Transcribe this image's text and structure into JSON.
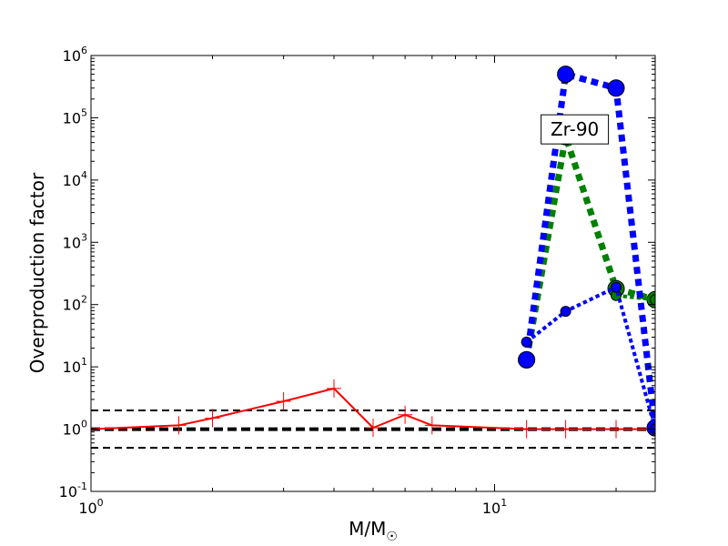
{
  "chart_data": {
    "type": "line",
    "title": "",
    "xlabel": "M/M",
    "xlabel_symbol": "☉",
    "ylabel": "Overproduction factor",
    "xscale": "log",
    "yscale": "log",
    "xlim": [
      1,
      25
    ],
    "ylim": [
      0.1,
      1000000
    ],
    "x_ticks": [
      {
        "value": 1,
        "base": "10",
        "exp": "0"
      },
      {
        "value": 10,
        "base": "10",
        "exp": "1"
      }
    ],
    "y_ticks": [
      {
        "value": 0.1,
        "base": "10",
        "exp": "-1"
      },
      {
        "value": 1,
        "base": "10",
        "exp": "0"
      },
      {
        "value": 10,
        "base": "10",
        "exp": "1"
      },
      {
        "value": 100,
        "base": "10",
        "exp": "2"
      },
      {
        "value": 1000,
        "base": "10",
        "exp": "3"
      },
      {
        "value": 10000,
        "base": "10",
        "exp": "4"
      },
      {
        "value": 100000,
        "base": "10",
        "exp": "5"
      },
      {
        "value": 1000000,
        "base": "10",
        "exp": "6"
      }
    ],
    "hlines": [
      {
        "y": 2,
        "color": "#000000",
        "style": "dashed",
        "weight": "thin"
      },
      {
        "y": 1,
        "color": "#000000",
        "style": "dashed",
        "weight": "thick"
      },
      {
        "y": 0.5,
        "color": "#000000",
        "style": "dashed",
        "weight": "thin"
      }
    ],
    "series": [
      {
        "color": "#ff0000",
        "line": "solid",
        "marker": "plus",
        "width": "thin",
        "x": [
          1,
          1.65,
          2,
          3,
          4,
          5,
          6,
          7,
          12,
          15,
          20,
          25
        ],
        "y": [
          1.0,
          1.15,
          1.5,
          2.8,
          4.5,
          1.05,
          1.7,
          1.15,
          1.0,
          1.0,
          1.0,
          1.0
        ]
      },
      {
        "color": "#008000",
        "line": "dotted",
        "marker": "circle",
        "width": "thick",
        "x": [
          12,
          15,
          20,
          25
        ],
        "y": [
          13,
          50000,
          180,
          120
        ]
      },
      {
        "color": "#008000",
        "line": "dotted",
        "marker": "circle",
        "width": "medium",
        "x": [
          20,
          25
        ],
        "y": [
          140,
          120
        ]
      },
      {
        "color": "#0000ff",
        "line": "dotted",
        "marker": "circle",
        "width": "thick",
        "x": [
          12,
          15,
          20,
          25
        ],
        "y": [
          13,
          500000,
          300000,
          1.05
        ]
      },
      {
        "color": "#0000ff",
        "line": "dotted",
        "marker": "circle",
        "width": "medium",
        "x": [
          12,
          15,
          20,
          25
        ],
        "y": [
          25,
          78,
          190,
          1.0
        ]
      }
    ],
    "annotations": [
      {
        "text": "Zr-90",
        "x": 15.8,
        "y": 63000
      }
    ],
    "grid": false,
    "legend": "none"
  }
}
